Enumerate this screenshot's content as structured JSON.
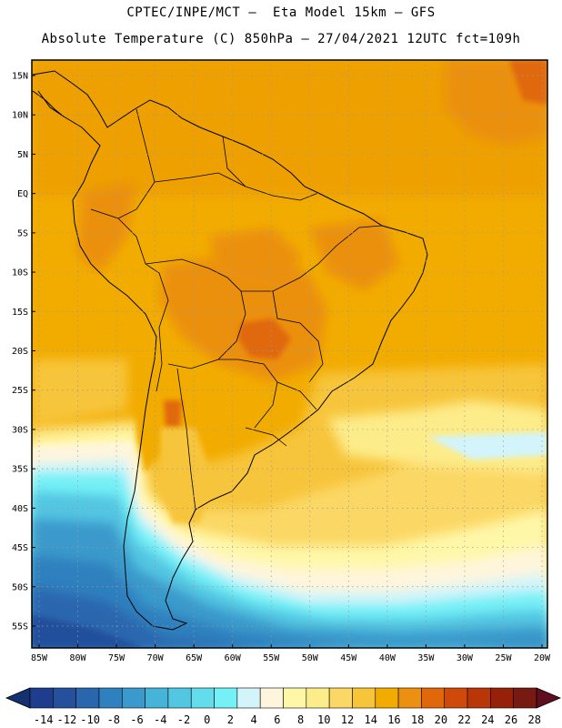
{
  "title_line1": "CPTEC/INPE/MCT –  Eta Model 15km – GFS",
  "title_line2": "Absolute Temperature (C) 850hPa – 27/04/2021 12UTC fct=109h",
  "lat_labels": [
    "15N",
    "10N",
    "5N",
    "EQ",
    "5S",
    "10S",
    "15S",
    "20S",
    "25S",
    "30S",
    "35S",
    "40S",
    "45S",
    "50S",
    "55S"
  ],
  "lat_values": [
    15,
    10,
    5,
    0,
    -5,
    -10,
    -15,
    -20,
    -25,
    -30,
    -35,
    -40,
    -45,
    -50,
    -55
  ],
  "lon_labels": [
    "85W",
    "80W",
    "75W",
    "70W",
    "65W",
    "60W",
    "55W",
    "50W",
    "45W",
    "40W",
    "35W",
    "30W",
    "25W",
    "20W"
  ],
  "lon_values": [
    -85,
    -80,
    -75,
    -70,
    -65,
    -60,
    -55,
    -50,
    -45,
    -40,
    -35,
    -30,
    -25,
    -20
  ],
  "colorbar": {
    "labels": [
      "-14",
      "-12",
      "-10",
      "-8",
      "-6",
      "-4",
      "-2",
      "0",
      "2",
      "4",
      "6",
      "8",
      "10",
      "12",
      "14",
      "16",
      "18",
      "20",
      "22",
      "24",
      "26",
      "28"
    ],
    "colors": [
      "#1e3d8c",
      "#24509c",
      "#2a66ae",
      "#2f80be",
      "#3a9acb",
      "#46b3d8",
      "#53c6e2",
      "#63dcec",
      "#74f0f6",
      "#d2f4fa",
      "#fff5dc",
      "#fff7a8",
      "#fdec8a",
      "#fbd865",
      "#f7c53a",
      "#f2ac00",
      "#eb9010",
      "#e0680a",
      "#cf4a0a",
      "#b83608",
      "#952208",
      "#771b12"
    ],
    "low_color": "#15306e",
    "high_color": "#5e0e1e"
  },
  "colors": {
    "border": "#000000",
    "grid": "#9a9a9a",
    "background": "#ffffff"
  }
}
